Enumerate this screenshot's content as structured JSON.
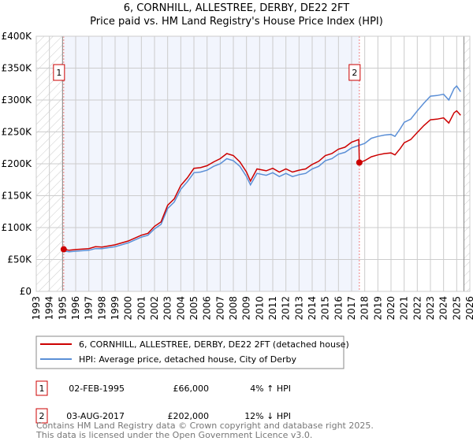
{
  "chart_data": {
    "type": "line",
    "title": "6, CORNHILL, ALLESTREE, DERBY, DE22 2FT",
    "subtitle": "Price paid vs. HM Land Registry's House Price Index (HPI)",
    "xlim": [
      1993,
      2026
    ],
    "ylim": [
      0,
      400000
    ],
    "x_ticks": [
      "1993",
      "1994",
      "1995",
      "1996",
      "1997",
      "1998",
      "1999",
      "2000",
      "2001",
      "2002",
      "2003",
      "2004",
      "2005",
      "2006",
      "2007",
      "2008",
      "2009",
      "2010",
      "2011",
      "2012",
      "2013",
      "2014",
      "2015",
      "2016",
      "2017",
      "2018",
      "2019",
      "2020",
      "2021",
      "2022",
      "2023",
      "2024",
      "2025",
      "2026"
    ],
    "y_ticks": [
      {
        "v": 0,
        "label": "£0"
      },
      {
        "v": 50000,
        "label": "£50K"
      },
      {
        "v": 100000,
        "label": "£100K"
      },
      {
        "v": 150000,
        "label": "£150K"
      },
      {
        "v": 200000,
        "label": "£200K"
      },
      {
        "v": 250000,
        "label": "£250K"
      },
      {
        "v": 300000,
        "label": "£300K"
      },
      {
        "v": 350000,
        "label": "£350K"
      },
      {
        "v": 400000,
        "label": "£400K"
      }
    ],
    "grid": true,
    "hatched_before": 1995.0,
    "hatched_after": 2025.55,
    "series": [
      {
        "name": "6, CORNHILL, ALLESTREE, DERBY, DE22 2FT (detached house)",
        "color": "#cc0000",
        "x": [
          1995.09,
          1995.5,
          1996,
          1997,
          1997.5,
          1998,
          1999,
          2000,
          2001,
          2001.5,
          2002,
          2002.5,
          2003,
          2003.5,
          2004,
          2004.5,
          2005,
          2005.5,
          2006,
          2006.5,
          2007,
          2007.5,
          2008,
          2008.5,
          2009,
          2009.3,
          2009.8,
          2010.5,
          2011,
          2011.5,
          2012,
          2012.5,
          2013,
          2013.5,
          2014,
          2014.5,
          2015,
          2015.5,
          2016,
          2016.5,
          2017,
          2017.55,
          2017.59,
          2018,
          2018.5,
          2019,
          2019.5,
          2020,
          2020.3,
          2020.7,
          2021,
          2021.5,
          2022,
          2022.5,
          2023,
          2023.5,
          2024,
          2024.4,
          2024.8,
          2025,
          2025.3
        ],
        "y": [
          66000,
          64500,
          65500,
          67000,
          70000,
          69500,
          73000,
          79000,
          88000,
          91000,
          102000,
          109000,
          135000,
          145000,
          166000,
          178000,
          193000,
          194000,
          197000,
          203000,
          208000,
          216000,
          213000,
          203000,
          187000,
          173000,
          192000,
          189000,
          193000,
          187000,
          192000,
          187000,
          190000,
          192000,
          199000,
          204000,
          213000,
          216000,
          223000,
          226000,
          234000,
          238000,
          202000,
          205000,
          211000,
          214000,
          216000,
          217000,
          214000,
          224000,
          233000,
          238000,
          249000,
          260000,
          269000,
          270000,
          272000,
          264000,
          280000,
          283000,
          276000
        ]
      },
      {
        "name": "HPI: Average price, detached house, City of Derby",
        "color": "#5b8fd6",
        "x": [
          1995.09,
          1995.5,
          1996,
          1997,
          1997.5,
          1998,
          1999,
          2000,
          2001,
          2001.5,
          2002,
          2002.5,
          2003,
          2003.5,
          2004,
          2004.5,
          2005,
          2005.5,
          2006,
          2006.5,
          2007,
          2007.5,
          2008,
          2008.5,
          2009,
          2009.3,
          2009.8,
          2010.5,
          2011,
          2011.5,
          2012,
          2012.5,
          2013,
          2013.5,
          2014,
          2014.5,
          2015,
          2015.5,
          2016,
          2016.5,
          2017,
          2017.59,
          2018,
          2018.5,
          2019,
          2019.5,
          2020,
          2020.3,
          2020.7,
          2021,
          2021.5,
          2022,
          2022.5,
          2023,
          2023.5,
          2024,
          2024.4,
          2024.8,
          2025,
          2025.3
        ],
        "y": [
          63500,
          62000,
          63000,
          64500,
          67000,
          67000,
          70000,
          76000,
          85000,
          88000,
          98000,
          105000,
          130000,
          140000,
          160000,
          172000,
          186000,
          187000,
          190000,
          196000,
          200000,
          208000,
          205000,
          196000,
          180000,
          167000,
          185000,
          182000,
          186000,
          180000,
          185000,
          180000,
          183000,
          185000,
          192000,
          196000,
          205000,
          208000,
          215000,
          218000,
          225000,
          229000,
          232000,
          240000,
          243000,
          245000,
          246000,
          243000,
          255000,
          265000,
          270000,
          283000,
          295000,
          306000,
          307000,
          309000,
          300000,
          318000,
          322000,
          313000
        ]
      }
    ],
    "sales": [
      {
        "id": "1",
        "x": 1995.09,
        "y": 66000,
        "date": "02-FEB-1995",
        "price": "£66,000",
        "hpi": "4% ↑ HPI"
      },
      {
        "id": "2",
        "x": 2017.59,
        "y": 202000,
        "date": "03-AUG-2017",
        "price": "£202,000",
        "hpi": "12% ↓ HPI"
      }
    ]
  },
  "footer": {
    "line1": "Contains HM Land Registry data © Crown copyright and database right 2025.",
    "line2": "This data is licensed under the Open Government Licence v3.0."
  }
}
